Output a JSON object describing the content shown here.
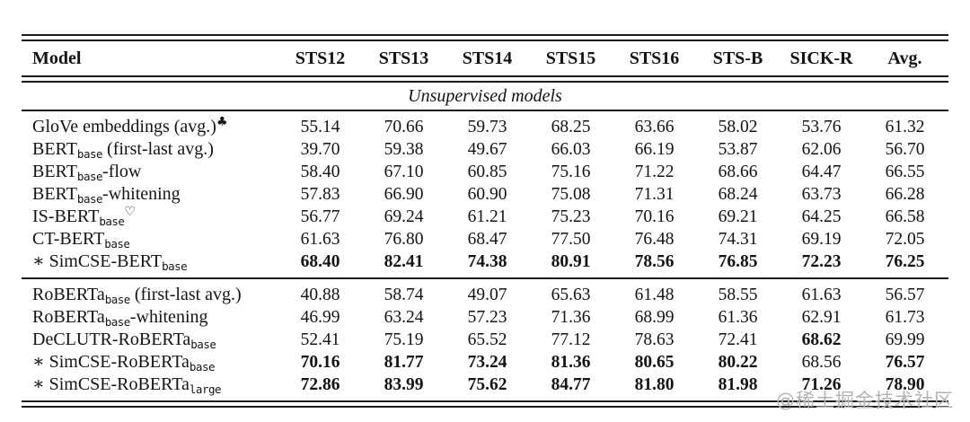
{
  "table": {
    "columns": [
      "Model",
      "STS12",
      "STS13",
      "STS14",
      "STS15",
      "STS16",
      "STS-B",
      "SICK-R",
      "Avg."
    ],
    "section_title": "Unsupervised models",
    "groups": [
      {
        "rows": [
          {
            "star": false,
            "pre": "GloVe embeddings (avg.)",
            "sub": "",
            "post": "",
            "sup": "♣",
            "values": [
              "55.14",
              "70.66",
              "59.73",
              "68.25",
              "63.66",
              "58.02",
              "53.76",
              "61.32"
            ],
            "bold": [
              false,
              false,
              false,
              false,
              false,
              false,
              false,
              false
            ]
          },
          {
            "star": false,
            "pre": "BERT",
            "sub": "base",
            "post": " (first-last avg.)",
            "sup": "",
            "values": [
              "39.70",
              "59.38",
              "49.67",
              "66.03",
              "66.19",
              "53.87",
              "62.06",
              "56.70"
            ],
            "bold": [
              false,
              false,
              false,
              false,
              false,
              false,
              false,
              false
            ]
          },
          {
            "star": false,
            "pre": "BERT",
            "sub": "base",
            "post": "-flow",
            "sup": "",
            "values": [
              "58.40",
              "67.10",
              "60.85",
              "75.16",
              "71.22",
              "68.66",
              "64.47",
              "66.55"
            ],
            "bold": [
              false,
              false,
              false,
              false,
              false,
              false,
              false,
              false
            ]
          },
          {
            "star": false,
            "pre": "BERT",
            "sub": "base",
            "post": "-whitening",
            "sup": "",
            "values": [
              "57.83",
              "66.90",
              "60.90",
              "75.08",
              "71.31",
              "68.24",
              "63.73",
              "66.28"
            ],
            "bold": [
              false,
              false,
              false,
              false,
              false,
              false,
              false,
              false
            ]
          },
          {
            "star": false,
            "pre": "IS-BERT",
            "sub": "base",
            "post": "",
            "sup": "♡",
            "values": [
              "56.77",
              "69.24",
              "61.21",
              "75.23",
              "70.16",
              "69.21",
              "64.25",
              "66.58"
            ],
            "bold": [
              false,
              false,
              false,
              false,
              false,
              false,
              false,
              false
            ]
          },
          {
            "star": false,
            "pre": "CT-BERT",
            "sub": "base",
            "post": "",
            "sup": "",
            "values": [
              "61.63",
              "76.80",
              "68.47",
              "77.50",
              "76.48",
              "74.31",
              "69.19",
              "72.05"
            ],
            "bold": [
              false,
              false,
              false,
              false,
              false,
              false,
              false,
              false
            ]
          },
          {
            "star": true,
            "pre": "SimCSE-BERT",
            "sub": "base",
            "post": "",
            "sup": "",
            "values": [
              "68.40",
              "82.41",
              "74.38",
              "80.91",
              "78.56",
              "76.85",
              "72.23",
              "76.25"
            ],
            "bold": [
              true,
              true,
              true,
              true,
              true,
              true,
              true,
              true
            ]
          }
        ]
      },
      {
        "rows": [
          {
            "star": false,
            "pre": "RoBERTa",
            "sub": "base",
            "post": " (first-last avg.)",
            "sup": "",
            "values": [
              "40.88",
              "58.74",
              "49.07",
              "65.63",
              "61.48",
              "58.55",
              "61.63",
              "56.57"
            ],
            "bold": [
              false,
              false,
              false,
              false,
              false,
              false,
              false,
              false
            ]
          },
          {
            "star": false,
            "pre": "RoBERTa",
            "sub": "base",
            "post": "-whitening",
            "sup": "",
            "values": [
              "46.99",
              "63.24",
              "57.23",
              "71.36",
              "68.99",
              "61.36",
              "62.91",
              "61.73"
            ],
            "bold": [
              false,
              false,
              false,
              false,
              false,
              false,
              false,
              false
            ]
          },
          {
            "star": false,
            "pre": "DeCLUTR-RoBERTa",
            "sub": "base",
            "post": "",
            "sup": "",
            "values": [
              "52.41",
              "75.19",
              "65.52",
              "77.12",
              "78.63",
              "72.41",
              "68.62",
              "69.99"
            ],
            "bold": [
              false,
              false,
              false,
              false,
              false,
              false,
              true,
              false
            ]
          },
          {
            "star": true,
            "pre": "SimCSE-RoBERTa",
            "sub": "base",
            "post": "",
            "sup": "",
            "values": [
              "70.16",
              "81.77",
              "73.24",
              "81.36",
              "80.65",
              "80.22",
              "68.56",
              "76.57"
            ],
            "bold": [
              true,
              true,
              true,
              true,
              true,
              true,
              false,
              true
            ]
          },
          {
            "star": true,
            "pre": "SimCSE-RoBERTa",
            "sub": "large",
            "post": "",
            "sup": "",
            "values": [
              "72.86",
              "83.99",
              "75.62",
              "84.77",
              "81.80",
              "81.98",
              "71.26",
              "78.90"
            ],
            "bold": [
              true,
              true,
              true,
              true,
              true,
              true,
              true,
              true
            ]
          }
        ]
      }
    ],
    "star_symbol": "∗"
  },
  "watermark": {
    "text": "@稀土掘金技术社区",
    "color": "#b4b4b4"
  }
}
